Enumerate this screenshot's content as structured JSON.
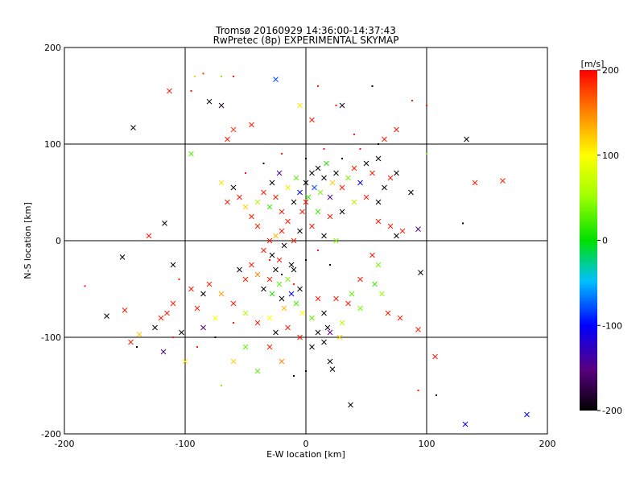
{
  "chart_data": {
    "type": "scatter",
    "title": "Tromsø 20160929 14:36:00-14:37:43",
    "subtitle": "RwPretec (8p) EXPERIMENTAL SKYMAP",
    "xlabel": "E-W location [km]",
    "ylabel": "N-S location [km]",
    "xlim": [
      -200,
      200
    ],
    "ylim": [
      -200,
      200
    ],
    "xticks": [
      "-200",
      "-100",
      "0",
      "100",
      "200"
    ],
    "yticks": [
      "-200",
      "-100",
      "0",
      "100",
      "200"
    ],
    "grid": true,
    "colorbar": {
      "label": "[m/s]",
      "range": [
        -200,
        200
      ],
      "ticks": [
        "-200",
        "-100",
        "0",
        "100",
        "200"
      ],
      "colormap": "rainbow (black → purple → blue → cyan → green → yellow → red)"
    },
    "markers": "x = larger echoes, dot = smaller echoes; color = Doppler velocity",
    "points": [
      {
        "x": -143,
        "y": 117,
        "v": -200,
        "m": "x"
      },
      {
        "x": -113,
        "y": 155,
        "v": 190,
        "m": "x"
      },
      {
        "x": -92,
        "y": 170,
        "v": 120,
        "m": "d"
      },
      {
        "x": -85,
        "y": 173,
        "v": 180,
        "m": "d"
      },
      {
        "x": -80,
        "y": 144,
        "v": -200,
        "m": "x"
      },
      {
        "x": -70,
        "y": 140,
        "v": -190,
        "m": "x"
      },
      {
        "x": -65,
        "y": 105,
        "v": 190,
        "m": "x"
      },
      {
        "x": -60,
        "y": 115,
        "v": 180,
        "m": "x"
      },
      {
        "x": -45,
        "y": 120,
        "v": 190,
        "m": "x"
      },
      {
        "x": -25,
        "y": 167,
        "v": -80,
        "m": "x"
      },
      {
        "x": -5,
        "y": 140,
        "v": 110,
        "m": "x"
      },
      {
        "x": 5,
        "y": 125,
        "v": 190,
        "m": "x"
      },
      {
        "x": 25,
        "y": 140,
        "v": 190,
        "m": "d"
      },
      {
        "x": 30,
        "y": 140,
        "v": -190,
        "m": "x"
      },
      {
        "x": 55,
        "y": 160,
        "v": -200,
        "m": "d"
      },
      {
        "x": 65,
        "y": 105,
        "v": 190,
        "m": "x"
      },
      {
        "x": 75,
        "y": 115,
        "v": 190,
        "m": "x"
      },
      {
        "x": 88,
        "y": 145,
        "v": 190,
        "m": "d"
      },
      {
        "x": 133,
        "y": 105,
        "v": -200,
        "m": "x"
      },
      {
        "x": 140,
        "y": 60,
        "v": 190,
        "m": "x"
      },
      {
        "x": 163,
        "y": 62,
        "v": 190,
        "m": "x"
      },
      {
        "x": 130,
        "y": 18,
        "v": -200,
        "m": "d"
      },
      {
        "x": 93,
        "y": 12,
        "v": -150,
        "m": "x"
      },
      {
        "x": 87,
        "y": 50,
        "v": -200,
        "m": "x"
      },
      {
        "x": 75,
        "y": 70,
        "v": -200,
        "m": "x"
      },
      {
        "x": -95,
        "y": 90,
        "v": 30,
        "m": "x"
      },
      {
        "x": -117,
        "y": 18,
        "v": -200,
        "m": "x"
      },
      {
        "x": -130,
        "y": 5,
        "v": 190,
        "m": "x"
      },
      {
        "x": -152,
        "y": -17,
        "v": -200,
        "m": "x"
      },
      {
        "x": -183,
        "y": -47,
        "v": 190,
        "m": "d"
      },
      {
        "x": -165,
        "y": -78,
        "v": -200,
        "m": "x"
      },
      {
        "x": -150,
        "y": -72,
        "v": 190,
        "m": "x"
      },
      {
        "x": -145,
        "y": -105,
        "v": 190,
        "m": "x"
      },
      {
        "x": -138,
        "y": -97,
        "v": 120,
        "m": "x"
      },
      {
        "x": -125,
        "y": -90,
        "v": -200,
        "m": "x"
      },
      {
        "x": -118,
        "y": -115,
        "v": -160,
        "m": "x"
      },
      {
        "x": -115,
        "y": -75,
        "v": 190,
        "m": "x"
      },
      {
        "x": -103,
        "y": -95,
        "v": -200,
        "m": "x"
      },
      {
        "x": -100,
        "y": -125,
        "v": 110,
        "m": "x"
      },
      {
        "x": -90,
        "y": -70,
        "v": 190,
        "m": "x"
      },
      {
        "x": -85,
        "y": -90,
        "v": -150,
        "m": "x"
      },
      {
        "x": -75,
        "y": -80,
        "v": 100,
        "m": "x"
      },
      {
        "x": -70,
        "y": -150,
        "v": 40,
        "m": "d"
      },
      {
        "x": -60,
        "y": -125,
        "v": 120,
        "m": "x"
      },
      {
        "x": -50,
        "y": -110,
        "v": 30,
        "m": "x"
      },
      {
        "x": -40,
        "y": -135,
        "v": 30,
        "m": "x"
      },
      {
        "x": -30,
        "y": -110,
        "v": 190,
        "m": "x"
      },
      {
        "x": -20,
        "y": -125,
        "v": 150,
        "m": "x"
      },
      {
        "x": -10,
        "y": -140,
        "v": -200,
        "m": "d"
      },
      {
        "x": 0,
        "y": -135,
        "v": -200,
        "m": "d"
      },
      {
        "x": 20,
        "y": -125,
        "v": -200,
        "m": "x"
      },
      {
        "x": 22,
        "y": -133,
        "v": -200,
        "m": "x"
      },
      {
        "x": 37,
        "y": -170,
        "v": -200,
        "m": "x"
      },
      {
        "x": 93,
        "y": -155,
        "v": 190,
        "m": "d"
      },
      {
        "x": 108,
        "y": -160,
        "v": -200,
        "m": "d"
      },
      {
        "x": 107,
        "y": -120,
        "v": 190,
        "m": "x"
      },
      {
        "x": 93,
        "y": -92,
        "v": 190,
        "m": "x"
      },
      {
        "x": 95,
        "y": -33,
        "v": -200,
        "m": "x"
      },
      {
        "x": 78,
        "y": -80,
        "v": 190,
        "m": "x"
      },
      {
        "x": 68,
        "y": -75,
        "v": 190,
        "m": "x"
      },
      {
        "x": 132,
        "y": -190,
        "v": -100,
        "m": "x"
      },
      {
        "x": 183,
        "y": -180,
        "v": -100,
        "m": "x"
      },
      {
        "x": 63,
        "y": -55,
        "v": 50,
        "m": "x"
      },
      {
        "x": 57,
        "y": -45,
        "v": 20,
        "m": "x"
      },
      {
        "x": 45,
        "y": -70,
        "v": 40,
        "m": "x"
      },
      {
        "x": 35,
        "y": -65,
        "v": 190,
        "m": "x"
      },
      {
        "x": 30,
        "y": -85,
        "v": 60,
        "m": "x"
      },
      {
        "x": 28,
        "y": -100,
        "v": 120,
        "m": "x"
      },
      {
        "x": 18,
        "y": -90,
        "v": -200,
        "m": "x"
      },
      {
        "x": 20,
        "y": -95,
        "v": -150,
        "m": "x"
      },
      {
        "x": 15,
        "y": -105,
        "v": -200,
        "m": "x"
      },
      {
        "x": 10,
        "y": -95,
        "v": -200,
        "m": "x"
      },
      {
        "x": 5,
        "y": -110,
        "v": -200,
        "m": "x"
      },
      {
        "x": -5,
        "y": -100,
        "v": 190,
        "m": "x"
      },
      {
        "x": -15,
        "y": -90,
        "v": 190,
        "m": "x"
      },
      {
        "x": -25,
        "y": -95,
        "v": -200,
        "m": "x"
      },
      {
        "x": -30,
        "y": -80,
        "v": 100,
        "m": "x"
      },
      {
        "x": -40,
        "y": -85,
        "v": 190,
        "m": "x"
      },
      {
        "x": -50,
        "y": -75,
        "v": 60,
        "m": "x"
      },
      {
        "x": -60,
        "y": -65,
        "v": 190,
        "m": "x"
      },
      {
        "x": -70,
        "y": -55,
        "v": 140,
        "m": "x"
      },
      {
        "x": -80,
        "y": -45,
        "v": 190,
        "m": "x"
      },
      {
        "x": -85,
        "y": -55,
        "v": -200,
        "m": "x"
      },
      {
        "x": -95,
        "y": -50,
        "v": 190,
        "m": "x"
      },
      {
        "x": -110,
        "y": -65,
        "v": 190,
        "m": "x"
      },
      {
        "x": -120,
        "y": -80,
        "v": 190,
        "m": "x"
      },
      {
        "x": -105,
        "y": -40,
        "v": 190,
        "m": "d"
      },
      {
        "x": -110,
        "y": -25,
        "v": -200,
        "m": "x"
      },
      {
        "x": -55,
        "y": -30,
        "v": -200,
        "m": "x"
      },
      {
        "x": -50,
        "y": -40,
        "v": 190,
        "m": "x"
      },
      {
        "x": -45,
        "y": -25,
        "v": 190,
        "m": "x"
      },
      {
        "x": -40,
        "y": -35,
        "v": 150,
        "m": "x"
      },
      {
        "x": -35,
        "y": -50,
        "v": -200,
        "m": "x"
      },
      {
        "x": -30,
        "y": -40,
        "v": 190,
        "m": "x"
      },
      {
        "x": -28,
        "y": -55,
        "v": 10,
        "m": "x"
      },
      {
        "x": -25,
        "y": -30,
        "v": -200,
        "m": "x"
      },
      {
        "x": -22,
        "y": -45,
        "v": 30,
        "m": "x"
      },
      {
        "x": -20,
        "y": -60,
        "v": -200,
        "m": "x"
      },
      {
        "x": -18,
        "y": -70,
        "v": 130,
        "m": "x"
      },
      {
        "x": -15,
        "y": -40,
        "v": 40,
        "m": "x"
      },
      {
        "x": -12,
        "y": -55,
        "v": -100,
        "m": "x"
      },
      {
        "x": -10,
        "y": -30,
        "v": -200,
        "m": "x"
      },
      {
        "x": -8,
        "y": -65,
        "v": 20,
        "m": "x"
      },
      {
        "x": -5,
        "y": -50,
        "v": -200,
        "m": "x"
      },
      {
        "x": -3,
        "y": -75,
        "v": 100,
        "m": "x"
      },
      {
        "x": -35,
        "y": -10,
        "v": 190,
        "m": "x"
      },
      {
        "x": -30,
        "y": 0,
        "v": 190,
        "m": "x"
      },
      {
        "x": -28,
        "y": -15,
        "v": -200,
        "m": "x"
      },
      {
        "x": -25,
        "y": 5,
        "v": 130,
        "m": "x"
      },
      {
        "x": -22,
        "y": -20,
        "v": 190,
        "m": "x"
      },
      {
        "x": -20,
        "y": 10,
        "v": 190,
        "m": "x"
      },
      {
        "x": -18,
        "y": -5,
        "v": -200,
        "m": "x"
      },
      {
        "x": -15,
        "y": 20,
        "v": 190,
        "m": "x"
      },
      {
        "x": -12,
        "y": -25,
        "v": -200,
        "m": "x"
      },
      {
        "x": -10,
        "y": 0,
        "v": 190,
        "m": "x"
      },
      {
        "x": -40,
        "y": 15,
        "v": 190,
        "m": "x"
      },
      {
        "x": -45,
        "y": 25,
        "v": 190,
        "m": "x"
      },
      {
        "x": -50,
        "y": 35,
        "v": 120,
        "m": "x"
      },
      {
        "x": -55,
        "y": 45,
        "v": 190,
        "m": "x"
      },
      {
        "x": -60,
        "y": 55,
        "v": -200,
        "m": "x"
      },
      {
        "x": -65,
        "y": 40,
        "v": 190,
        "m": "x"
      },
      {
        "x": -70,
        "y": 60,
        "v": 110,
        "m": "x"
      },
      {
        "x": -40,
        "y": 40,
        "v": 60,
        "m": "x"
      },
      {
        "x": -35,
        "y": 50,
        "v": 190,
        "m": "x"
      },
      {
        "x": -30,
        "y": 35,
        "v": 20,
        "m": "x"
      },
      {
        "x": -28,
        "y": 60,
        "v": -200,
        "m": "x"
      },
      {
        "x": -25,
        "y": 45,
        "v": 190,
        "m": "x"
      },
      {
        "x": -22,
        "y": 70,
        "v": -150,
        "m": "x"
      },
      {
        "x": -20,
        "y": 30,
        "v": 190,
        "m": "x"
      },
      {
        "x": -15,
        "y": 55,
        "v": 110,
        "m": "x"
      },
      {
        "x": -10,
        "y": 40,
        "v": -200,
        "m": "x"
      },
      {
        "x": -8,
        "y": 65,
        "v": 30,
        "m": "x"
      },
      {
        "x": -5,
        "y": 50,
        "v": -100,
        "m": "x"
      },
      {
        "x": -3,
        "y": 30,
        "v": 190,
        "m": "x"
      },
      {
        "x": 0,
        "y": 60,
        "v": -200,
        "m": "x"
      },
      {
        "x": 2,
        "y": 45,
        "v": 20,
        "m": "x"
      },
      {
        "x": 5,
        "y": 70,
        "v": -200,
        "m": "x"
      },
      {
        "x": 7,
        "y": 55,
        "v": -80,
        "m": "x"
      },
      {
        "x": 10,
        "y": 75,
        "v": -200,
        "m": "x"
      },
      {
        "x": 12,
        "y": 50,
        "v": 40,
        "m": "x"
      },
      {
        "x": 15,
        "y": 65,
        "v": -200,
        "m": "x"
      },
      {
        "x": 17,
        "y": 80,
        "v": 10,
        "m": "x"
      },
      {
        "x": 20,
        "y": 45,
        "v": -150,
        "m": "x"
      },
      {
        "x": 22,
        "y": 60,
        "v": 120,
        "m": "x"
      },
      {
        "x": 25,
        "y": 70,
        "v": -200,
        "m": "x"
      },
      {
        "x": 30,
        "y": 55,
        "v": 190,
        "m": "x"
      },
      {
        "x": 35,
        "y": 65,
        "v": 40,
        "m": "x"
      },
      {
        "x": 40,
        "y": 75,
        "v": 190,
        "m": "x"
      },
      {
        "x": 45,
        "y": 60,
        "v": -100,
        "m": "x"
      },
      {
        "x": 50,
        "y": 80,
        "v": -200,
        "m": "x"
      },
      {
        "x": 55,
        "y": 70,
        "v": 190,
        "m": "x"
      },
      {
        "x": 60,
        "y": 85,
        "v": -200,
        "m": "x"
      },
      {
        "x": 65,
        "y": 55,
        "v": -200,
        "m": "x"
      },
      {
        "x": 70,
        "y": 65,
        "v": 190,
        "m": "x"
      },
      {
        "x": 60,
        "y": 40,
        "v": -200,
        "m": "x"
      },
      {
        "x": 50,
        "y": 45,
        "v": 190,
        "m": "x"
      },
      {
        "x": 40,
        "y": 40,
        "v": 60,
        "m": "x"
      },
      {
        "x": 30,
        "y": 30,
        "v": -200,
        "m": "x"
      },
      {
        "x": 20,
        "y": 25,
        "v": 190,
        "m": "x"
      },
      {
        "x": 15,
        "y": 5,
        "v": -200,
        "m": "x"
      },
      {
        "x": 25,
        "y": 0,
        "v": 40,
        "m": "x"
      },
      {
        "x": 5,
        "y": 15,
        "v": 190,
        "m": "x"
      },
      {
        "x": -5,
        "y": 10,
        "v": -200,
        "m": "x"
      },
      {
        "x": 10,
        "y": 30,
        "v": 20,
        "m": "x"
      },
      {
        "x": 0,
        "y": 40,
        "v": 190,
        "m": "x"
      },
      {
        "x": 70,
        "y": 15,
        "v": 190,
        "m": "x"
      },
      {
        "x": 80,
        "y": 10,
        "v": 190,
        "m": "x"
      },
      {
        "x": 75,
        "y": 5,
        "v": -200,
        "m": "x"
      },
      {
        "x": 60,
        "y": 20,
        "v": 190,
        "m": "x"
      },
      {
        "x": 55,
        "y": -15,
        "v": 190,
        "m": "x"
      },
      {
        "x": 60,
        "y": -25,
        "v": 40,
        "m": "x"
      },
      {
        "x": 45,
        "y": -40,
        "v": 190,
        "m": "x"
      },
      {
        "x": 38,
        "y": -55,
        "v": 30,
        "m": "x"
      },
      {
        "x": 25,
        "y": -60,
        "v": 190,
        "m": "x"
      },
      {
        "x": 15,
        "y": -75,
        "v": -200,
        "m": "x"
      },
      {
        "x": 10,
        "y": -60,
        "v": 190,
        "m": "x"
      },
      {
        "x": 5,
        "y": -80,
        "v": 30,
        "m": "x"
      },
      {
        "x": -30,
        "y": -20,
        "v": 190,
        "m": "d"
      },
      {
        "x": -20,
        "y": -35,
        "v": -200,
        "m": "d"
      },
      {
        "x": -10,
        "y": -45,
        "v": 190,
        "m": "d"
      },
      {
        "x": 0,
        "y": -20,
        "v": -200,
        "m": "d"
      },
      {
        "x": 10,
        "y": -10,
        "v": 190,
        "m": "d"
      },
      {
        "x": 20,
        "y": -25,
        "v": -200,
        "m": "d"
      },
      {
        "x": -50,
        "y": 70,
        "v": 190,
        "m": "d"
      },
      {
        "x": -35,
        "y": 80,
        "v": -200,
        "m": "d"
      },
      {
        "x": -20,
        "y": 90,
        "v": 190,
        "m": "d"
      },
      {
        "x": 0,
        "y": 85,
        "v": -200,
        "m": "d"
      },
      {
        "x": 15,
        "y": 95,
        "v": 190,
        "m": "d"
      },
      {
        "x": 30,
        "y": 85,
        "v": -200,
        "m": "d"
      },
      {
        "x": 45,
        "y": 95,
        "v": 190,
        "m": "d"
      },
      {
        "x": 40,
        "y": 110,
        "v": 190,
        "m": "d"
      },
      {
        "x": 60,
        "y": 100,
        "v": -200,
        "m": "d"
      },
      {
        "x": -60,
        "y": -85,
        "v": 190,
        "m": "d"
      },
      {
        "x": -75,
        "y": -100,
        "v": -200,
        "m": "d"
      },
      {
        "x": -90,
        "y": -110,
        "v": 190,
        "m": "d"
      },
      {
        "x": -140,
        "y": -110,
        "v": -200,
        "m": "d"
      },
      {
        "x": -110,
        "y": -100,
        "v": 190,
        "m": "d"
      },
      {
        "x": -60,
        "y": 170,
        "v": 190,
        "m": "d"
      },
      {
        "x": -95,
        "y": 155,
        "v": 190,
        "m": "d"
      },
      {
        "x": -70,
        "y": 170,
        "v": 40,
        "m": "d"
      },
      {
        "x": 10,
        "y": 160,
        "v": 190,
        "m": "d"
      },
      {
        "x": 100,
        "y": 90,
        "v": 40,
        "m": "d"
      },
      {
        "x": 100,
        "y": 140,
        "v": 190,
        "m": "d"
      }
    ]
  }
}
